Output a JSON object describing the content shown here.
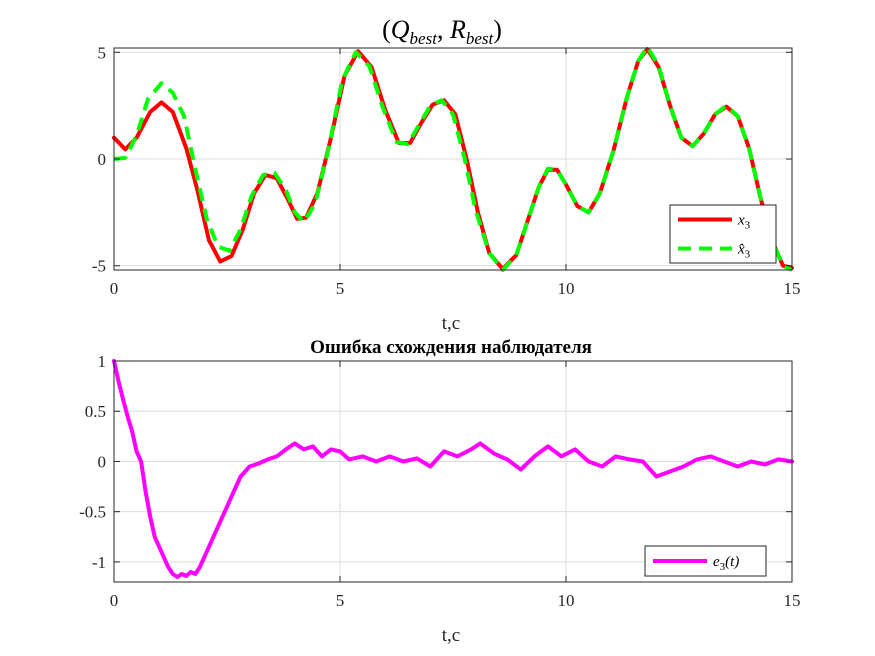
{
  "chart_data": [
    {
      "type": "line",
      "title": "(Q_best, R_best)",
      "title_parts": {
        "open": "(",
        "q": "Q",
        "q_sub": "best",
        "sep": ", ",
        "r": "R",
        "r_sub": "best",
        "close": ")"
      },
      "xlabel": "t,c",
      "ylabel": "",
      "xlim": [
        0,
        15
      ],
      "ylim": [
        -5.2,
        5.2
      ],
      "xticks": [
        0,
        5,
        10,
        15
      ],
      "yticks": [
        -5,
        0,
        5
      ],
      "ytick_labels": [
        "-5",
        "0",
        "5"
      ],
      "grid": true,
      "legend_position": "bottom-right",
      "series": [
        {
          "name": "x3",
          "legend_parts": {
            "base": "x",
            "sub": "3"
          },
          "color": "#ff0000",
          "style": "solid",
          "points": [
            [
              0,
              1.0
            ],
            [
              0.25,
              0.45
            ],
            [
              0.5,
              1.0
            ],
            [
              0.8,
              2.2
            ],
            [
              1.05,
              2.65
            ],
            [
              1.3,
              2.2
            ],
            [
              1.6,
              0.5
            ],
            [
              1.85,
              -1.5
            ],
            [
              2.1,
              -3.8
            ],
            [
              2.35,
              -4.8
            ],
            [
              2.6,
              -4.55
            ],
            [
              2.85,
              -3.3
            ],
            [
              3.1,
              -1.6
            ],
            [
              3.35,
              -0.75
            ],
            [
              3.6,
              -0.9
            ],
            [
              3.85,
              -1.9
            ],
            [
              4.05,
              -2.8
            ],
            [
              4.25,
              -2.75
            ],
            [
              4.5,
              -1.6
            ],
            [
              4.8,
              1.0
            ],
            [
              5.1,
              3.9
            ],
            [
              5.4,
              5.05
            ],
            [
              5.7,
              4.3
            ],
            [
              6.0,
              2.3
            ],
            [
              6.3,
              0.75
            ],
            [
              6.55,
              0.75
            ],
            [
              6.8,
              1.7
            ],
            [
              7.05,
              2.55
            ],
            [
              7.3,
              2.75
            ],
            [
              7.55,
              2.1
            ],
            [
              7.8,
              0.0
            ],
            [
              8.05,
              -2.5
            ],
            [
              8.3,
              -4.4
            ],
            [
              8.6,
              -5.15
            ],
            [
              8.9,
              -4.5
            ],
            [
              9.15,
              -2.9
            ],
            [
              9.4,
              -1.3
            ],
            [
              9.6,
              -0.5
            ],
            [
              9.8,
              -0.5
            ],
            [
              10.0,
              -1.2
            ],
            [
              10.25,
              -2.2
            ],
            [
              10.5,
              -2.5
            ],
            [
              10.75,
              -1.6
            ],
            [
              11.05,
              0.4
            ],
            [
              11.35,
              2.9
            ],
            [
              11.6,
              4.6
            ],
            [
              11.8,
              5.15
            ],
            [
              12.05,
              4.3
            ],
            [
              12.3,
              2.5
            ],
            [
              12.55,
              1.0
            ],
            [
              12.8,
              0.6
            ],
            [
              13.05,
              1.2
            ],
            [
              13.3,
              2.1
            ],
            [
              13.55,
              2.45
            ],
            [
              13.8,
              2.0
            ],
            [
              14.05,
              0.5
            ],
            [
              14.3,
              -1.8
            ],
            [
              14.55,
              -3.8
            ],
            [
              14.8,
              -5.0
            ],
            [
              15.0,
              -5.1
            ]
          ]
        },
        {
          "name": "x̂3",
          "legend_parts": {
            "base": "x̂",
            "sub": "3"
          },
          "color": "#00ff00",
          "style": "dashed",
          "points": [
            [
              0,
              0.0
            ],
            [
              0.25,
              0.05
            ],
            [
              0.5,
              1.1
            ],
            [
              0.75,
              2.8
            ],
            [
              1.05,
              3.55
            ],
            [
              1.3,
              3.1
            ],
            [
              1.55,
              2.0
            ],
            [
              1.8,
              -0.5
            ],
            [
              2.05,
              -2.8
            ],
            [
              2.3,
              -4.1
            ],
            [
              2.55,
              -4.3
            ],
            [
              2.8,
              -3.3
            ],
            [
              3.05,
              -1.7
            ],
            [
              3.3,
              -0.75
            ],
            [
              3.55,
              -0.65
            ],
            [
              3.8,
              -1.45
            ],
            [
              4.0,
              -2.5
            ],
            [
              4.2,
              -2.95
            ],
            [
              4.45,
              -2.1
            ],
            [
              4.75,
              0.5
            ],
            [
              5.05,
              3.7
            ],
            [
              5.35,
              5.0
            ],
            [
              5.65,
              4.35
            ],
            [
              5.95,
              2.4
            ],
            [
              6.25,
              0.8
            ],
            [
              6.5,
              0.7
            ],
            [
              6.75,
              1.6
            ],
            [
              7.0,
              2.5
            ],
            [
              7.25,
              2.75
            ],
            [
              7.5,
              2.1
            ],
            [
              7.75,
              0.1
            ],
            [
              8.0,
              -2.4
            ],
            [
              8.3,
              -4.4
            ],
            [
              8.6,
              -5.2
            ],
            [
              8.9,
              -4.5
            ],
            [
              9.15,
              -2.9
            ],
            [
              9.4,
              -1.3
            ],
            [
              9.6,
              -0.45
            ],
            [
              9.8,
              -0.5
            ],
            [
              10.0,
              -1.2
            ],
            [
              10.25,
              -2.2
            ],
            [
              10.5,
              -2.5
            ],
            [
              10.75,
              -1.6
            ],
            [
              11.05,
              0.4
            ],
            [
              11.35,
              2.9
            ],
            [
              11.6,
              4.6
            ],
            [
              11.8,
              5.25
            ],
            [
              12.05,
              4.35
            ],
            [
              12.3,
              2.5
            ],
            [
              12.55,
              1.0
            ],
            [
              12.8,
              0.6
            ],
            [
              13.05,
              1.2
            ],
            [
              13.3,
              2.1
            ],
            [
              13.55,
              2.5
            ],
            [
              13.8,
              2.0
            ],
            [
              14.05,
              0.5
            ],
            [
              14.3,
              -1.8
            ],
            [
              14.55,
              -3.8
            ],
            [
              14.8,
              -5.0
            ],
            [
              15.0,
              -5.2
            ]
          ]
        }
      ]
    },
    {
      "type": "line",
      "title": "Ошибка схождения наблюдателя",
      "xlabel": "t,c",
      "ylabel": "",
      "xlim": [
        0,
        15
      ],
      "ylim": [
        -1.2,
        1.0
      ],
      "xticks": [
        0,
        5,
        10,
        15
      ],
      "yticks": [
        -1,
        -0.5,
        0,
        0.5,
        1
      ],
      "ytick_labels": [
        "-1",
        "-0.5",
        "0",
        "0.5",
        "1"
      ],
      "grid": true,
      "legend_position": "bottom-right",
      "series": [
        {
          "name": "e3(t)",
          "legend_parts": {
            "base": "e",
            "sub": "3",
            "suffix": "(t)"
          },
          "color": "#ff00ff",
          "style": "solid",
          "points": [
            [
              0,
              1.0
            ],
            [
              0.1,
              0.8
            ],
            [
              0.2,
              0.62
            ],
            [
              0.3,
              0.45
            ],
            [
              0.4,
              0.3
            ],
            [
              0.5,
              0.1
            ],
            [
              0.6,
              0.0
            ],
            [
              0.7,
              -0.3
            ],
            [
              0.8,
              -0.55
            ],
            [
              0.9,
              -0.75
            ],
            [
              1.0,
              -0.85
            ],
            [
              1.1,
              -0.95
            ],
            [
              1.2,
              -1.05
            ],
            [
              1.3,
              -1.12
            ],
            [
              1.4,
              -1.15
            ],
            [
              1.5,
              -1.12
            ],
            [
              1.6,
              -1.14
            ],
            [
              1.7,
              -1.1
            ],
            [
              1.8,
              -1.12
            ],
            [
              1.9,
              -1.05
            ],
            [
              2.0,
              -0.95
            ],
            [
              2.2,
              -0.75
            ],
            [
              2.4,
              -0.55
            ],
            [
              2.6,
              -0.35
            ],
            [
              2.8,
              -0.15
            ],
            [
              3.0,
              -0.05
            ],
            [
              3.2,
              -0.02
            ],
            [
              3.4,
              0.02
            ],
            [
              3.6,
              0.05
            ],
            [
              3.8,
              0.12
            ],
            [
              4.0,
              0.18
            ],
            [
              4.2,
              0.12
            ],
            [
              4.4,
              0.15
            ],
            [
              4.6,
              0.05
            ],
            [
              4.8,
              0.12
            ],
            [
              5.0,
              0.1
            ],
            [
              5.2,
              0.02
            ],
            [
              5.5,
              0.05
            ],
            [
              5.8,
              0.0
            ],
            [
              6.1,
              0.05
            ],
            [
              6.4,
              0.0
            ],
            [
              6.7,
              0.03
            ],
            [
              7.0,
              -0.05
            ],
            [
              7.3,
              0.1
            ],
            [
              7.6,
              0.05
            ],
            [
              7.9,
              0.12
            ],
            [
              8.1,
              0.18
            ],
            [
              8.4,
              0.08
            ],
            [
              8.7,
              0.02
            ],
            [
              9.0,
              -0.08
            ],
            [
              9.3,
              0.05
            ],
            [
              9.6,
              0.15
            ],
            [
              9.9,
              0.05
            ],
            [
              10.2,
              0.12
            ],
            [
              10.5,
              0.0
            ],
            [
              10.8,
              -0.05
            ],
            [
              11.1,
              0.05
            ],
            [
              11.4,
              0.02
            ],
            [
              11.7,
              0.0
            ],
            [
              12.0,
              -0.15
            ],
            [
              12.3,
              -0.1
            ],
            [
              12.6,
              -0.05
            ],
            [
              12.9,
              0.02
            ],
            [
              13.2,
              0.05
            ],
            [
              13.5,
              0.0
            ],
            [
              13.8,
              -0.05
            ],
            [
              14.1,
              0.0
            ],
            [
              14.4,
              -0.03
            ],
            [
              14.7,
              0.02
            ],
            [
              15.0,
              0.0
            ]
          ]
        }
      ]
    }
  ]
}
